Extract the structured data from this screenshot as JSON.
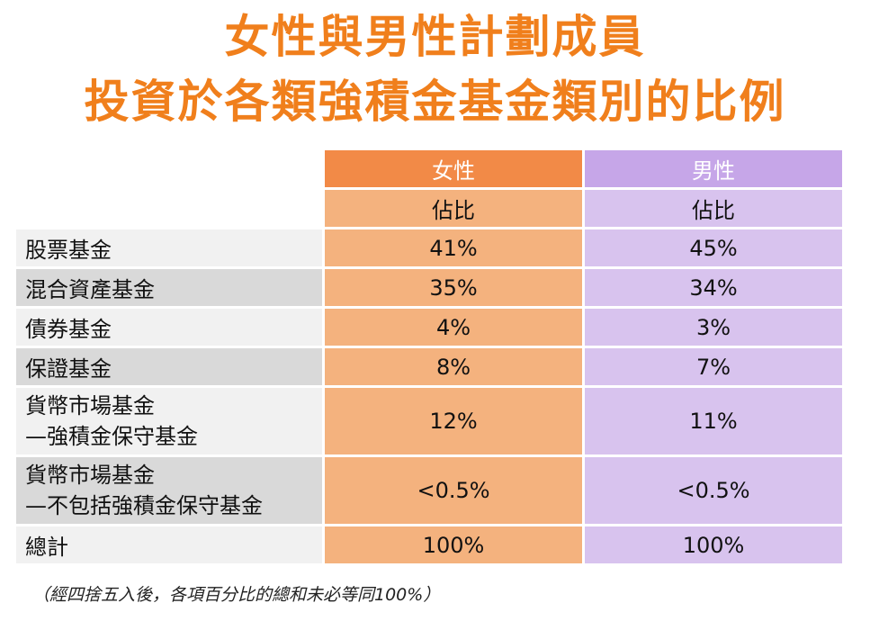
{
  "title": {
    "line1": "女性與男性計劃成員",
    "line2": "投資於各類強積金基金類別的比例",
    "color": "#f07f1c"
  },
  "table": {
    "header": {
      "female": "女性",
      "male": "男性"
    },
    "subheader": {
      "female": "佔比",
      "male": "佔比"
    },
    "rows": [
      {
        "label": "股票基金",
        "female": "41%",
        "male": "45%"
      },
      {
        "label": "混合資產基金",
        "female": "35%",
        "male": "34%"
      },
      {
        "label": "債券基金",
        "female": "4%",
        "male": "3%"
      },
      {
        "label": "保證基金",
        "female": "8%",
        "male": "7%"
      },
      {
        "label_line1": "貨幣市場基金",
        "label_line2": "—強積金保守基金",
        "female": "12%",
        "male": "11%"
      },
      {
        "label_line1": "貨幣市場基金",
        "label_line2": "—不包括強積金保守基金",
        "female": "<0.5%",
        "male": "<0.5%"
      },
      {
        "label": "總計",
        "female": "100%",
        "male": "100%"
      }
    ]
  },
  "footnote": "（經四捨五入後，各項百分比的總和未必等同100%）",
  "colors": {
    "female_header": "#f28a47",
    "female_cell": "#f4b27e",
    "male_header": "#c6a6e8",
    "male_cell": "#d8c3ee"
  }
}
